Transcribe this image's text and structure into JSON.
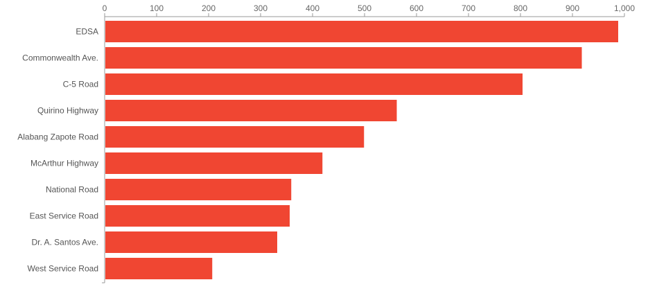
{
  "chart_data": {
    "type": "bar",
    "orientation": "horizontal",
    "categories": [
      "EDSA",
      "Commonwealth Ave.",
      "C-5 Road",
      "Quirino Highway",
      "Alabang Zapote Road",
      "McArthur Highway",
      "National Road",
      "East Service Road",
      "Dr. A. Santos Ave.",
      "West Service Road"
    ],
    "values": [
      988,
      918,
      804,
      562,
      499,
      419,
      359,
      356,
      332,
      207
    ],
    "xlim": [
      0,
      1000
    ],
    "xticks": [
      0,
      100,
      200,
      300,
      400,
      500,
      600,
      700,
      800,
      900,
      1000
    ],
    "xtick_labels": [
      "0",
      "100",
      "200",
      "300",
      "400",
      "500",
      "600",
      "700",
      "800",
      "900",
      "1,000"
    ],
    "axis_position": "top",
    "grid": false,
    "legend": "none",
    "bar_color": "#f04632",
    "axis_color": "#999999"
  }
}
